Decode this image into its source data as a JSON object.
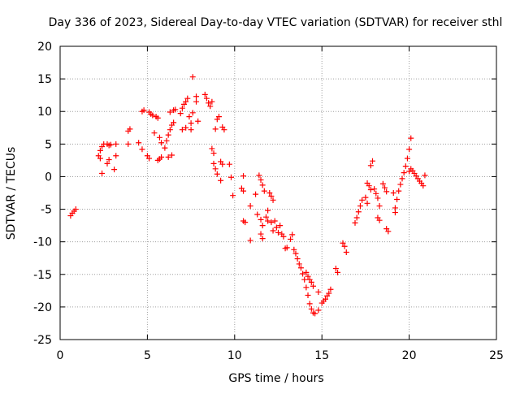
{
  "chart_data": {
    "type": "scatter",
    "title": "Day 336 of 2023, Sidereal Day-to-day VTEC variation (SDTVAR) for receiver sthl",
    "xlabel": "GPS time / hours",
    "ylabel": "SDTVAR / TECUs",
    "xlim": [
      0,
      25
    ],
    "ylim": [
      -25,
      20
    ],
    "xticks": [
      0,
      5,
      10,
      15,
      20,
      25
    ],
    "yticks": [
      -25,
      -20,
      -15,
      -10,
      -5,
      0,
      5,
      10,
      15,
      20
    ],
    "grid": true,
    "marker": "+",
    "series_color": "#ff0000",
    "series": [
      {
        "name": "SDTVAR",
        "points": [
          [
            0.6,
            -6.0
          ],
          [
            0.7,
            -5.6
          ],
          [
            0.8,
            -5.3
          ],
          [
            0.9,
            -5.0
          ],
          [
            2.2,
            3.2
          ],
          [
            2.3,
            4.0
          ],
          [
            2.4,
            4.6
          ],
          [
            2.3,
            2.8
          ],
          [
            2.5,
            5.0
          ],
          [
            2.4,
            0.5
          ],
          [
            2.7,
            5.0
          ],
          [
            2.8,
            4.8
          ],
          [
            2.7,
            2.0
          ],
          [
            2.8,
            2.6
          ],
          [
            2.9,
            4.9
          ],
          [
            3.1,
            1.1
          ],
          [
            3.2,
            3.2
          ],
          [
            3.2,
            5.0
          ],
          [
            3.9,
            7.0
          ],
          [
            4.0,
            7.3
          ],
          [
            3.9,
            5.0
          ],
          [
            4.5,
            5.2
          ],
          [
            4.7,
            4.2
          ],
          [
            4.7,
            10.0
          ],
          [
            4.8,
            10.2
          ],
          [
            5.0,
            3.2
          ],
          [
            5.1,
            2.8
          ],
          [
            5.1,
            9.9
          ],
          [
            5.2,
            9.6
          ],
          [
            5.3,
            9.4
          ],
          [
            5.4,
            6.7
          ],
          [
            5.5,
            9.2
          ],
          [
            5.6,
            9.0
          ],
          [
            5.6,
            2.5
          ],
          [
            5.7,
            2.7
          ],
          [
            5.8,
            3.0
          ],
          [
            5.7,
            6.0
          ],
          [
            5.8,
            5.2
          ],
          [
            6.0,
            4.4
          ],
          [
            6.1,
            5.5
          ],
          [
            6.2,
            6.4
          ],
          [
            6.3,
            7.2
          ],
          [
            6.4,
            7.9
          ],
          [
            6.5,
            8.3
          ],
          [
            6.2,
            3.0
          ],
          [
            6.4,
            3.3
          ],
          [
            6.3,
            9.9
          ],
          [
            6.5,
            10.2
          ],
          [
            6.6,
            10.3
          ],
          [
            6.9,
            9.7
          ],
          [
            7.0,
            10.5
          ],
          [
            7.1,
            11.1
          ],
          [
            7.2,
            11.5
          ],
          [
            7.3,
            12.0
          ],
          [
            7.0,
            7.2
          ],
          [
            7.2,
            7.5
          ],
          [
            7.4,
            9.2
          ],
          [
            7.5,
            8.2
          ],
          [
            7.6,
            9.8
          ],
          [
            7.5,
            7.2
          ],
          [
            7.6,
            15.3
          ],
          [
            7.8,
            11.5
          ],
          [
            7.8,
            12.3
          ],
          [
            7.9,
            8.5
          ],
          [
            8.3,
            12.6
          ],
          [
            8.4,
            12.0
          ],
          [
            8.5,
            11.3
          ],
          [
            8.6,
            10.8
          ],
          [
            8.7,
            11.5
          ],
          [
            8.7,
            4.3
          ],
          [
            8.8,
            3.6
          ],
          [
            8.8,
            2.0
          ],
          [
            8.9,
            1.2
          ],
          [
            8.9,
            7.3
          ],
          [
            9.0,
            8.8
          ],
          [
            9.1,
            9.2
          ],
          [
            9.2,
            2.3
          ],
          [
            9.3,
            1.9
          ],
          [
            9.3,
            7.6
          ],
          [
            9.4,
            7.2
          ],
          [
            9.0,
            0.4
          ],
          [
            9.2,
            -0.6
          ],
          [
            9.7,
            1.9
          ],
          [
            9.8,
            -0.1
          ],
          [
            9.9,
            -2.9
          ],
          [
            10.4,
            -1.8
          ],
          [
            10.5,
            -2.2
          ],
          [
            10.5,
            0.1
          ],
          [
            10.5,
            -6.8
          ],
          [
            10.6,
            -7.0
          ],
          [
            10.9,
            -4.5
          ],
          [
            10.9,
            -9.8
          ],
          [
            11.2,
            -2.7
          ],
          [
            11.3,
            -5.8
          ],
          [
            11.4,
            0.2
          ],
          [
            11.5,
            -0.5
          ],
          [
            11.6,
            -1.3
          ],
          [
            11.7,
            -2.2
          ],
          [
            11.5,
            -6.6
          ],
          [
            11.6,
            -7.5
          ],
          [
            11.5,
            -8.8
          ],
          [
            11.6,
            -9.5
          ],
          [
            11.8,
            -6.2
          ],
          [
            11.9,
            -6.8
          ],
          [
            11.9,
            -5.2
          ],
          [
            12.0,
            -2.5
          ],
          [
            12.1,
            -3.0
          ],
          [
            12.2,
            -3.6
          ],
          [
            12.1,
            -7.0
          ],
          [
            12.2,
            -8.3
          ],
          [
            12.3,
            -6.8
          ],
          [
            12.4,
            -7.8
          ],
          [
            12.5,
            -8.6
          ],
          [
            12.6,
            -7.5
          ],
          [
            12.7,
            -8.8
          ],
          [
            12.8,
            -9.2
          ],
          [
            12.9,
            -11.0
          ],
          [
            13.0,
            -10.9
          ],
          [
            13.2,
            -9.6
          ],
          [
            13.3,
            -8.9
          ],
          [
            13.4,
            -11.2
          ],
          [
            13.5,
            -11.8
          ],
          [
            13.6,
            -12.6
          ],
          [
            13.7,
            -13.4
          ],
          [
            13.8,
            -14.0
          ],
          [
            13.9,
            -14.9
          ],
          [
            14.0,
            -15.8
          ],
          [
            14.1,
            -17.0
          ],
          [
            14.2,
            -18.2
          ],
          [
            14.3,
            -19.5
          ],
          [
            14.4,
            -20.3
          ],
          [
            14.5,
            -20.9
          ],
          [
            14.6,
            -21.0
          ],
          [
            14.1,
            -14.7
          ],
          [
            14.2,
            -15.3
          ],
          [
            14.3,
            -15.8
          ],
          [
            14.4,
            -16.2
          ],
          [
            14.5,
            -16.8
          ],
          [
            14.8,
            -17.7
          ],
          [
            14.8,
            -20.5
          ],
          [
            15.0,
            -19.4
          ],
          [
            15.1,
            -19.1
          ],
          [
            15.2,
            -18.8
          ],
          [
            15.3,
            -18.3
          ],
          [
            15.4,
            -17.9
          ],
          [
            15.5,
            -17.3
          ],
          [
            15.8,
            -14.1
          ],
          [
            15.9,
            -14.7
          ],
          [
            16.2,
            -10.2
          ],
          [
            16.3,
            -10.7
          ],
          [
            16.4,
            -11.6
          ],
          [
            16.9,
            -7.1
          ],
          [
            17.0,
            -6.3
          ],
          [
            17.1,
            -5.4
          ],
          [
            17.2,
            -4.5
          ],
          [
            17.3,
            -3.6
          ],
          [
            17.5,
            -3.2
          ],
          [
            17.6,
            -4.1
          ],
          [
            17.6,
            -1.0
          ],
          [
            17.7,
            -1.4
          ],
          [
            17.8,
            -2.0
          ],
          [
            17.8,
            1.7
          ],
          [
            17.9,
            2.4
          ],
          [
            18.0,
            -1.9
          ],
          [
            18.1,
            -2.6
          ],
          [
            18.2,
            -3.3
          ],
          [
            18.3,
            -4.5
          ],
          [
            18.2,
            -6.3
          ],
          [
            18.3,
            -6.7
          ],
          [
            18.5,
            -1.1
          ],
          [
            18.6,
            -1.7
          ],
          [
            18.7,
            -2.3
          ],
          [
            18.7,
            -8.0
          ],
          [
            18.8,
            -8.4
          ],
          [
            19.1,
            -2.5
          ],
          [
            19.2,
            -4.8
          ],
          [
            19.2,
            -5.5
          ],
          [
            19.3,
            -3.5
          ],
          [
            19.4,
            -2.2
          ],
          [
            19.5,
            -1.2
          ],
          [
            19.6,
            -0.3
          ],
          [
            19.7,
            0.6
          ],
          [
            19.8,
            1.6
          ],
          [
            19.9,
            2.8
          ],
          [
            20.0,
            4.2
          ],
          [
            20.1,
            5.9
          ],
          [
            20.0,
            0.8
          ],
          [
            20.1,
            1.2
          ],
          [
            20.2,
            0.9
          ],
          [
            20.3,
            0.5
          ],
          [
            20.4,
            0.1
          ],
          [
            20.5,
            -0.3
          ],
          [
            20.6,
            -0.7
          ],
          [
            20.7,
            -1.0
          ],
          [
            20.8,
            -1.4
          ],
          [
            20.9,
            0.2
          ]
        ]
      }
    ]
  }
}
